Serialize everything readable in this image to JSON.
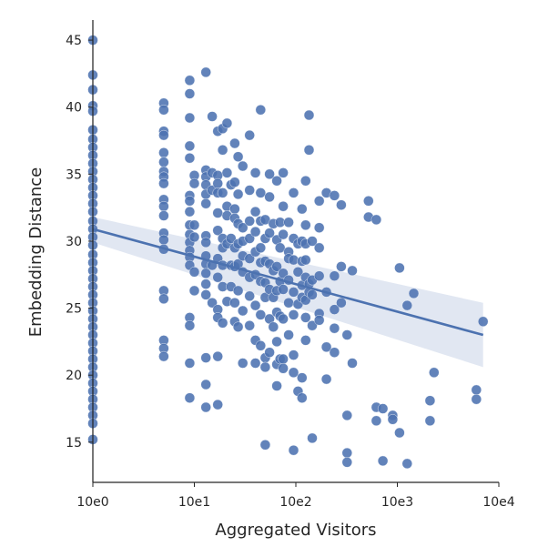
{
  "chart_data": {
    "type": "scatter",
    "title": "",
    "xlabel": "Aggregated Visitors",
    "ylabel": "Embedding Distance",
    "x_scale": "log10",
    "xlim": [
      1,
      10000
    ],
    "ylim": [
      12,
      46.5
    ],
    "x_ticks": [
      1,
      10,
      100,
      1000,
      10000
    ],
    "x_tick_labels": [
      "10e0",
      "10e1",
      "10e2",
      "10e3",
      "10e4"
    ],
    "y_ticks": [
      15,
      20,
      25,
      30,
      35,
      40,
      45
    ],
    "y_tick_labels": [
      "15",
      "20",
      "25",
      "30",
      "35",
      "40",
      "45"
    ],
    "grid": false,
    "colors": {
      "points": "#4c72b0",
      "line": "#4c72b0",
      "band": "#c9d3e8"
    },
    "regression": {
      "x": [
        1,
        7000
      ],
      "y": [
        30.9,
        23.0
      ],
      "ci_upper": [
        31.8,
        25.4
      ],
      "ci_lower": [
        29.9,
        20.6
      ]
    },
    "series": [
      {
        "points": [
          [
            1,
            45.0
          ],
          [
            1,
            42.4
          ],
          [
            1,
            41.3
          ],
          [
            1,
            40.1
          ],
          [
            1,
            39.7
          ],
          [
            1,
            38.3
          ],
          [
            1,
            37.6
          ],
          [
            1,
            37.0
          ],
          [
            1,
            36.4
          ],
          [
            1,
            35.8
          ],
          [
            1,
            35.2
          ],
          [
            1,
            34.6
          ],
          [
            1,
            34.0
          ],
          [
            1,
            33.4
          ],
          [
            1,
            32.8
          ],
          [
            1,
            32.2
          ],
          [
            1,
            31.5
          ],
          [
            1,
            30.9
          ],
          [
            1,
            30.3
          ],
          [
            1,
            29.7
          ],
          [
            1,
            29.0
          ],
          [
            1,
            28.4
          ],
          [
            1,
            27.8
          ],
          [
            1,
            27.2
          ],
          [
            1,
            26.6
          ],
          [
            1,
            26.0
          ],
          [
            1,
            25.4
          ],
          [
            1,
            24.8
          ],
          [
            1,
            24.2
          ],
          [
            1,
            23.6
          ],
          [
            1,
            23.0
          ],
          [
            1,
            22.4
          ],
          [
            1,
            21.8
          ],
          [
            1,
            21.2
          ],
          [
            1,
            20.6
          ],
          [
            1,
            20.0
          ],
          [
            1,
            19.4
          ],
          [
            1,
            18.8
          ],
          [
            1,
            18.2
          ],
          [
            1,
            17.6
          ],
          [
            1,
            17.0
          ],
          [
            1,
            16.4
          ],
          [
            1,
            15.2
          ],
          [
            5,
            40.3
          ],
          [
            5,
            39.8
          ],
          [
            5,
            38.2
          ],
          [
            5,
            37.9
          ],
          [
            5,
            36.6
          ],
          [
            5,
            35.9
          ],
          [
            5,
            35.2
          ],
          [
            5,
            34.8
          ],
          [
            5,
            34.3
          ],
          [
            5,
            33.1
          ],
          [
            5,
            32.6
          ],
          [
            5,
            31.9
          ],
          [
            5,
            30.6
          ],
          [
            5,
            30.1
          ],
          [
            5,
            29.4
          ],
          [
            5,
            26.3
          ],
          [
            5,
            25.7
          ],
          [
            5,
            22.6
          ],
          [
            5,
            22.0
          ],
          [
            5,
            21.4
          ],
          [
            9,
            42.0
          ],
          [
            9,
            41.0
          ],
          [
            9,
            39.2
          ],
          [
            9,
            37.1
          ],
          [
            9,
            36.2
          ],
          [
            9,
            33.4
          ],
          [
            9,
            33.0
          ],
          [
            9,
            32.2
          ],
          [
            9,
            31.2
          ],
          [
            9,
            30.5
          ],
          [
            9,
            29.9
          ],
          [
            9,
            29.3
          ],
          [
            9,
            28.8
          ],
          [
            9,
            28.2
          ],
          [
            9,
            24.3
          ],
          [
            9,
            23.7
          ],
          [
            9,
            20.9
          ],
          [
            9,
            18.3
          ],
          [
            10,
            34.9
          ],
          [
            10,
            34.3
          ],
          [
            10,
            31.2
          ],
          [
            10,
            30.3
          ],
          [
            10,
            27.7
          ],
          [
            10,
            26.3
          ],
          [
            13,
            42.6
          ],
          [
            13,
            35.3
          ],
          [
            13,
            34.8
          ],
          [
            13,
            34.2
          ],
          [
            13,
            33.5
          ],
          [
            13,
            32.8
          ],
          [
            13,
            30.4
          ],
          [
            13,
            29.9
          ],
          [
            13,
            28.9
          ],
          [
            13,
            28.3
          ],
          [
            13,
            27.6
          ],
          [
            13,
            26.8
          ],
          [
            13,
            26.0
          ],
          [
            13,
            21.3
          ],
          [
            13,
            19.3
          ],
          [
            13,
            17.6
          ],
          [
            15,
            39.3
          ],
          [
            15,
            35.1
          ],
          [
            15,
            33.8
          ],
          [
            15,
            28.2
          ],
          [
            15,
            25.4
          ],
          [
            17,
            38.2
          ],
          [
            17,
            34.9
          ],
          [
            17,
            34.3
          ],
          [
            17,
            33.6
          ],
          [
            17,
            32.1
          ],
          [
            17,
            30.8
          ],
          [
            17,
            28.7
          ],
          [
            17,
            27.3
          ],
          [
            17,
            24.9
          ],
          [
            17,
            24.3
          ],
          [
            17,
            21.4
          ],
          [
            17,
            17.8
          ],
          [
            19,
            38.4
          ],
          [
            19,
            36.8
          ],
          [
            19,
            33.6
          ],
          [
            19,
            30.2
          ],
          [
            19,
            29.5
          ],
          [
            19,
            28.2
          ],
          [
            19,
            26.6
          ],
          [
            19,
            23.9
          ],
          [
            21,
            38.8
          ],
          [
            21,
            35.1
          ],
          [
            21,
            32.6
          ],
          [
            21,
            31.9
          ],
          [
            21,
            29.8
          ],
          [
            21,
            25.5
          ],
          [
            23,
            34.2
          ],
          [
            23,
            30.2
          ],
          [
            23,
            28.2
          ],
          [
            23,
            26.6
          ],
          [
            25,
            37.3
          ],
          [
            25,
            34.4
          ],
          [
            25,
            32.4
          ],
          [
            25,
            31.7
          ],
          [
            25,
            29.5
          ],
          [
            25,
            28.1
          ],
          [
            25,
            25.4
          ],
          [
            25,
            24.0
          ],
          [
            27,
            36.3
          ],
          [
            27,
            33.5
          ],
          [
            27,
            31.3
          ],
          [
            27,
            29.8
          ],
          [
            27,
            28.3
          ],
          [
            27,
            26.3
          ],
          [
            27,
            23.6
          ],
          [
            30,
            35.6
          ],
          [
            30,
            31.0
          ],
          [
            30,
            30.0
          ],
          [
            30,
            28.9
          ],
          [
            30,
            27.7
          ],
          [
            30,
            24.8
          ],
          [
            30,
            20.9
          ],
          [
            35,
            37.9
          ],
          [
            35,
            33.8
          ],
          [
            35,
            31.5
          ],
          [
            35,
            30.2
          ],
          [
            35,
            28.7
          ],
          [
            35,
            27.3
          ],
          [
            35,
            25.9
          ],
          [
            35,
            23.7
          ],
          [
            40,
            35.1
          ],
          [
            40,
            32.2
          ],
          [
            40,
            30.7
          ],
          [
            40,
            29.2
          ],
          [
            40,
            27.5
          ],
          [
            40,
            25.2
          ],
          [
            40,
            22.6
          ],
          [
            40,
            20.9
          ],
          [
            45,
            39.8
          ],
          [
            45,
            33.6
          ],
          [
            45,
            31.5
          ],
          [
            45,
            29.5
          ],
          [
            45,
            28.4
          ],
          [
            45,
            27.0
          ],
          [
            45,
            24.5
          ],
          [
            45,
            22.2
          ],
          [
            50,
            31.6
          ],
          [
            50,
            30.2
          ],
          [
            50,
            28.5
          ],
          [
            50,
            26.9
          ],
          [
            50,
            25.8
          ],
          [
            50,
            21.3
          ],
          [
            50,
            20.6
          ],
          [
            50,
            14.8
          ],
          [
            55,
            35.0
          ],
          [
            55,
            33.3
          ],
          [
            55,
            30.6
          ],
          [
            55,
            28.3
          ],
          [
            55,
            26.4
          ],
          [
            55,
            24.2
          ],
          [
            55,
            21.7
          ],
          [
            60,
            31.3
          ],
          [
            60,
            27.8
          ],
          [
            60,
            25.8
          ],
          [
            60,
            23.6
          ],
          [
            65,
            34.5
          ],
          [
            65,
            30.1
          ],
          [
            65,
            28.1
          ],
          [
            65,
            26.3
          ],
          [
            65,
            24.7
          ],
          [
            65,
            22.5
          ],
          [
            65,
            20.8
          ],
          [
            65,
            19.2
          ],
          [
            70,
            31.4
          ],
          [
            70,
            29.5
          ],
          [
            70,
            27.0
          ],
          [
            70,
            24.4
          ],
          [
            70,
            21.2
          ],
          [
            75,
            35.1
          ],
          [
            75,
            32.6
          ],
          [
            75,
            30.5
          ],
          [
            75,
            27.6
          ],
          [
            75,
            26.4
          ],
          [
            75,
            24.2
          ],
          [
            75,
            21.2
          ],
          [
            75,
            20.5
          ],
          [
            85,
            31.4
          ],
          [
            85,
            29.2
          ],
          [
            85,
            28.7
          ],
          [
            85,
            27.1
          ],
          [
            85,
            25.4
          ],
          [
            85,
            23.0
          ],
          [
            95,
            33.6
          ],
          [
            95,
            30.2
          ],
          [
            95,
            28.6
          ],
          [
            95,
            26.2
          ],
          [
            95,
            24.5
          ],
          [
            95,
            21.5
          ],
          [
            95,
            20.2
          ],
          [
            95,
            14.4
          ],
          [
            105,
            29.8
          ],
          [
            105,
            27.7
          ],
          [
            105,
            25.3
          ],
          [
            105,
            18.8
          ],
          [
            115,
            32.4
          ],
          [
            115,
            30.0
          ],
          [
            115,
            28.5
          ],
          [
            115,
            26.7
          ],
          [
            115,
            25.8
          ],
          [
            115,
            19.8
          ],
          [
            115,
            18.3
          ],
          [
            125,
            34.5
          ],
          [
            125,
            31.2
          ],
          [
            125,
            29.8
          ],
          [
            125,
            28.6
          ],
          [
            125,
            27.3
          ],
          [
            125,
            25.6
          ],
          [
            125,
            24.3
          ],
          [
            125,
            22.6
          ],
          [
            135,
            39.4
          ],
          [
            135,
            36.8
          ],
          [
            135,
            26.8
          ],
          [
            135,
            26.2
          ],
          [
            145,
            30.0
          ],
          [
            145,
            27.1
          ],
          [
            145,
            26.0
          ],
          [
            145,
            23.7
          ],
          [
            145,
            15.3
          ],
          [
            170,
            33.0
          ],
          [
            170,
            31.0
          ],
          [
            170,
            29.5
          ],
          [
            170,
            27.4
          ],
          [
            170,
            24.6
          ],
          [
            170,
            24.1
          ],
          [
            200,
            33.6
          ],
          [
            200,
            26.2
          ],
          [
            200,
            22.1
          ],
          [
            200,
            19.7
          ],
          [
            240,
            33.4
          ],
          [
            240,
            27.4
          ],
          [
            240,
            24.9
          ],
          [
            240,
            23.5
          ],
          [
            240,
            21.7
          ],
          [
            280,
            32.7
          ],
          [
            280,
            28.1
          ],
          [
            280,
            25.4
          ],
          [
            320,
            14.2
          ],
          [
            320,
            13.5
          ],
          [
            320,
            17.0
          ],
          [
            320,
            23.0
          ],
          [
            360,
            27.8
          ],
          [
            360,
            20.9
          ],
          [
            520,
            33.0
          ],
          [
            520,
            31.8
          ],
          [
            620,
            31.6
          ],
          [
            620,
            17.6
          ],
          [
            620,
            16.6
          ],
          [
            720,
            17.5
          ],
          [
            720,
            13.6
          ],
          [
            900,
            17.0
          ],
          [
            900,
            16.7
          ],
          [
            1050,
            28.0
          ],
          [
            1050,
            15.7
          ],
          [
            1250,
            25.2
          ],
          [
            1250,
            13.4
          ],
          [
            1450,
            26.1
          ],
          [
            2100,
            18.1
          ],
          [
            2100,
            16.6
          ],
          [
            2300,
            20.2
          ],
          [
            6000,
            18.9
          ],
          [
            6000,
            18.2
          ],
          [
            7000,
            24.0
          ]
        ]
      }
    ]
  }
}
